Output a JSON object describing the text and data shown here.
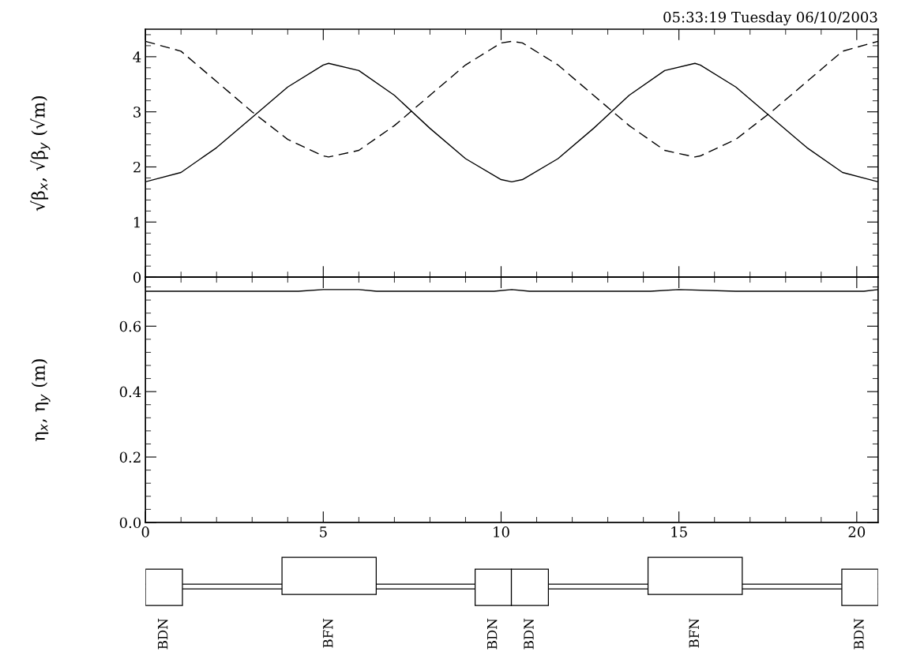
{
  "chart_data": [
    {
      "type": "line",
      "ylabel": "√β$_{x}$, √β$_{y}$ (√m)",
      "annotations": [
        "05:33:19 Tuesday 06/10/2003"
      ],
      "xlim": [
        0,
        20.6
      ],
      "xticks": [
        0,
        5,
        10,
        15,
        20
      ],
      "ylim": [
        0,
        4.5
      ],
      "yticks": [
        0,
        1,
        2,
        3,
        4
      ],
      "tick_labels": "y",
      "grid": false,
      "series": [
        {
          "color": "#000000",
          "line_style": "solid",
          "x": [
            0,
            1,
            2,
            3,
            4,
            5,
            5.15,
            6,
            7,
            8,
            9,
            10,
            10.3,
            10.6,
            11.6,
            12.6,
            13.6,
            14.6,
            15.45,
            15.6,
            16.6,
            17.6,
            18.6,
            19.6,
            20.6
          ],
          "values": [
            1.73,
            1.9,
            2.35,
            2.9,
            3.45,
            3.85,
            3.88,
            3.75,
            3.3,
            2.7,
            2.15,
            1.77,
            1.73,
            1.77,
            2.15,
            2.7,
            3.3,
            3.75,
            3.88,
            3.85,
            3.45,
            2.9,
            2.35,
            1.9,
            1.73
          ]
        },
        {
          "color": "#000000",
          "line_style": "dashed",
          "x": [
            0,
            1,
            2,
            3,
            4,
            5,
            5.15,
            6,
            7,
            8,
            9,
            10,
            10.3,
            10.6,
            11.6,
            12.6,
            13.6,
            14.6,
            15.45,
            15.6,
            16.6,
            17.6,
            18.6,
            19.6,
            20.6
          ],
          "values": [
            4.28,
            4.1,
            3.55,
            3.0,
            2.5,
            2.2,
            2.18,
            2.3,
            2.75,
            3.3,
            3.85,
            4.25,
            4.28,
            4.25,
            3.85,
            3.3,
            2.75,
            2.3,
            2.18,
            2.2,
            2.5,
            3.0,
            3.55,
            4.1,
            4.28
          ]
        }
      ]
    },
    {
      "type": "line",
      "ylabel": "η$_{x}$, η$_{y}$ (m)",
      "xlim": [
        0,
        20.6
      ],
      "xticks": [
        0,
        5,
        10,
        15,
        20
      ],
      "ylim": [
        0,
        0.75
      ],
      "yticks": [
        {
          "value": 0,
          "label": "0.0"
        },
        0.2,
        0.4,
        0.6
      ],
      "grid": false,
      "series": [
        {
          "color": "#000000",
          "line_style": "solid",
          "x": [
            0,
            4.3,
            5,
            6,
            6.5,
            9.8,
            10.3,
            10.8,
            14.2,
            15,
            16.6,
            20.2,
            20.6
          ],
          "values": [
            0.707,
            0.707,
            0.712,
            0.712,
            0.707,
            0.707,
            0.712,
            0.707,
            0.707,
            0.712,
            0.707,
            0.707,
            0.712
          ]
        }
      ],
      "annotations": [
        "BDN",
        "BFN",
        "BDN",
        "BDN",
        "BFN",
        "BDN"
      ]
    }
  ]
}
